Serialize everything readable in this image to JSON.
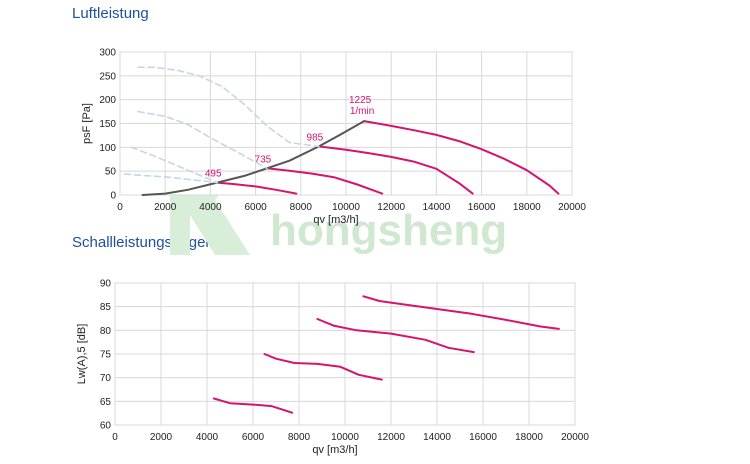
{
  "chart_data": [
    {
      "type": "line",
      "title": "Luftleistung",
      "xlabel": "qv [m3/h]",
      "ylabel": "psF [Pa]",
      "xlim": [
        0,
        20000
      ],
      "ylim": [
        0,
        300
      ],
      "xticks": [
        "0",
        "2000",
        "4000",
        "6000",
        "8000",
        "10000",
        "12000",
        "14000",
        "16000",
        "18000",
        "20000"
      ],
      "yticks": [
        "0",
        "50",
        "100",
        "150",
        "200",
        "250",
        "300"
      ],
      "grid": true,
      "colors": {
        "curve": "#d4146e",
        "limit": "#555555",
        "extension": "#c5d6e6",
        "grid": "#d8d8d8"
      },
      "series": [
        {
          "label": "1225",
          "unit": "1/min",
          "x": [
            10800,
            12000,
            13000,
            14000,
            15000,
            16000,
            17000,
            18000,
            19000,
            19400
          ],
          "y": [
            155,
            145,
            136,
            126,
            113,
            96,
            76,
            52,
            20,
            3
          ]
        },
        {
          "label": "985",
          "x": [
            8800,
            10000,
            11000,
            12000,
            13000,
            14000,
            15000,
            15600
          ],
          "y": [
            102,
            95,
            88,
            80,
            70,
            55,
            25,
            3
          ]
        },
        {
          "label": "735",
          "x": [
            6500,
            7500,
            8500,
            9500,
            10500,
            11600
          ],
          "y": [
            56,
            51,
            45,
            37,
            22,
            3
          ]
        },
        {
          "label": "495",
          "x": [
            4300,
            5000,
            6000,
            7000,
            7800
          ],
          "y": [
            26,
            23,
            18,
            10,
            3
          ]
        },
        {
          "label": "",
          "x": [
            1000,
            2000,
            3000,
            4300,
            5500,
            6500,
            7500,
            8800,
            9800,
            10800
          ],
          "y": [
            0,
            3,
            11,
            26,
            40,
            56,
            72,
            102,
            128,
            155
          ]
        },
        {
          "label": "",
          "x": [
            800,
            1500,
            2500,
            3500,
            4500,
            5500,
            6500,
            7500,
            8800
          ],
          "y": [
            268,
            268,
            262,
            250,
            228,
            190,
            145,
            110,
            102
          ]
        },
        {
          "label": "",
          "x": [
            800,
            2000,
            3000,
            4000,
            5500,
            6500
          ],
          "y": [
            175,
            165,
            148,
            120,
            82,
            56
          ]
        },
        {
          "label": "",
          "x": [
            500,
            1500,
            2500,
            3500,
            4300
          ],
          "y": [
            100,
            82,
            62,
            42,
            26
          ]
        },
        {
          "label": "",
          "x": [
            200,
            1000,
            2000,
            3000,
            4300
          ],
          "y": [
            44,
            41,
            38,
            33,
            26
          ]
        }
      ]
    },
    {
      "type": "line",
      "title": "Schallleistungspegel",
      "xlabel": "qv [m3/h]",
      "ylabel": "Lw(A),5 [dB]",
      "xlim": [
        0,
        20000
      ],
      "ylim": [
        60,
        90
      ],
      "xticks": [
        "0",
        "2000",
        "4000",
        "6000",
        "8000",
        "10000",
        "12000",
        "14000",
        "16000",
        "18000",
        "20000"
      ],
      "yticks": [
        "60",
        "65",
        "70",
        "75",
        "80",
        "85",
        "90"
      ],
      "grid": true,
      "series": [
        {
          "x": [
            10800,
            11500,
            12500,
            14000,
            15500,
            17000,
            18500,
            19300
          ],
          "y": [
            87.2,
            86.2,
            85.5,
            84.5,
            83.5,
            82.2,
            80.8,
            80.3
          ]
        },
        {
          "x": [
            8800,
            9500,
            10500,
            12000,
            13500,
            14500,
            15600
          ],
          "y": [
            82.4,
            81,
            80,
            79.3,
            78,
            76.3,
            75.4
          ]
        },
        {
          "x": [
            6500,
            7000,
            7800,
            8800,
            9800,
            10600,
            11600
          ],
          "y": [
            75,
            74,
            73.1,
            72.9,
            72.3,
            70.6,
            69.6
          ]
        },
        {
          "x": [
            4300,
            5000,
            6000,
            6800,
            7700
          ],
          "y": [
            65.6,
            64.6,
            64.3,
            64,
            62.6
          ]
        }
      ]
    }
  ],
  "watermark": "hongsheng"
}
